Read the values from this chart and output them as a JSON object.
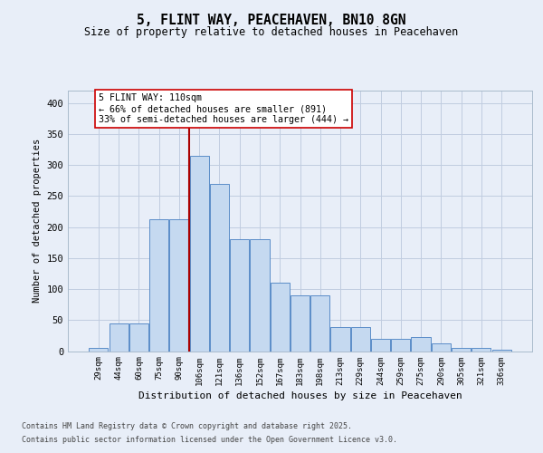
{
  "title": "5, FLINT WAY, PEACEHAVEN, BN10 8GN",
  "subtitle": "Size of property relative to detached houses in Peacehaven",
  "xlabel": "Distribution of detached houses by size in Peacehaven",
  "ylabel": "Number of detached properties",
  "categories": [
    "29sqm",
    "44sqm",
    "60sqm",
    "75sqm",
    "90sqm",
    "106sqm",
    "121sqm",
    "136sqm",
    "152sqm",
    "167sqm",
    "183sqm",
    "198sqm",
    "213sqm",
    "229sqm",
    "244sqm",
    "259sqm",
    "275sqm",
    "290sqm",
    "305sqm",
    "321sqm",
    "336sqm"
  ],
  "bar_values": [
    5,
    44,
    44,
    212,
    212,
    315,
    270,
    180,
    180,
    110,
    90,
    90,
    38,
    38,
    20,
    20,
    22,
    12,
    5,
    5,
    2
  ],
  "bar_color": "#c5d9f0",
  "bar_edge_color": "#5b8dc8",
  "vline_position": 4.5,
  "vline_color": "#aa0000",
  "annotation_text": "5 FLINT WAY: 110sqm\n← 66% of detached houses are smaller (891)\n33% of semi-detached houses are larger (444) →",
  "ylim": [
    0,
    420
  ],
  "yticks": [
    0,
    50,
    100,
    150,
    200,
    250,
    300,
    350,
    400
  ],
  "footer_line1": "Contains HM Land Registry data © Crown copyright and database right 2025.",
  "footer_line2": "Contains public sector information licensed under the Open Government Licence v3.0.",
  "bg_color": "#e8eef8",
  "grid_color": "#c0cce0"
}
